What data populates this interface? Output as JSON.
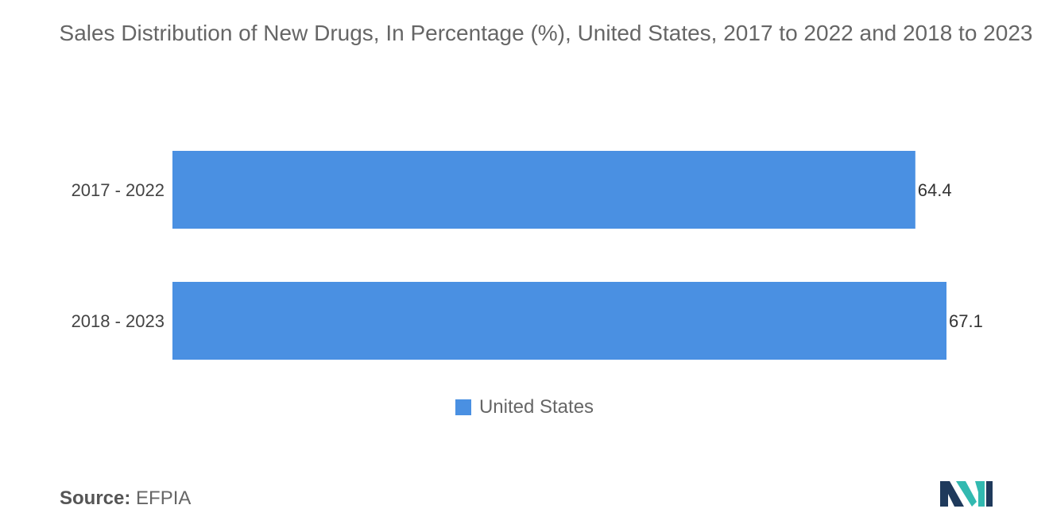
{
  "chart_data": {
    "type": "bar",
    "orientation": "horizontal",
    "title": "Sales Distribution of New Drugs, In Percentage (%), United States, 2017 to 2022 and 2018 to 2023",
    "categories": [
      "2017 - 2022",
      "2018 - 2023"
    ],
    "series": [
      {
        "name": "United States",
        "values": [
          64.4,
          67.1
        ],
        "color": "#4a90e2"
      }
    ],
    "xlim": [
      0,
      67.1
    ],
    "grid": false,
    "legend": "bottom-center",
    "xlabel": "",
    "ylabel": ""
  },
  "source": {
    "label": "Source:",
    "value": "EFPIA"
  },
  "logo": {
    "icon": "mordor-intelligence-logo-icon",
    "colors": [
      "#1f3a5c",
      "#32b9b0"
    ]
  }
}
